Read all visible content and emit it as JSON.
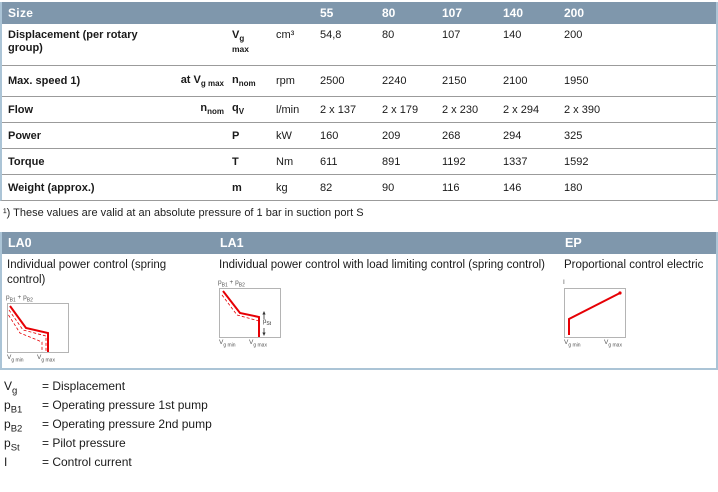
{
  "colors": {
    "header_bar": "#7f97ac",
    "section_border": "#abc4d6",
    "row_divider": "#9b9b9b",
    "curve_red": "#e60005"
  },
  "table": {
    "title": "Size",
    "sizes": [
      "55",
      "80",
      "107",
      "140",
      "200"
    ],
    "rows": [
      {
        "label": "Displacement (per rotary group)",
        "cond": [],
        "symbol": [
          {
            "t": "V"
          },
          {
            "t": "g",
            "s": true
          },
          {
            "t": "max",
            "sm": true,
            "br": true
          }
        ],
        "unit": "cm³",
        "values": [
          "54,8",
          "80",
          "107",
          "140",
          "200"
        ]
      },
      {
        "label": "Max. speed 1)",
        "cond": [
          {
            "t": "at V"
          },
          {
            "t": "g max",
            "s": true
          }
        ],
        "symbol": [
          {
            "t": "n"
          },
          {
            "t": "nom",
            "s": true
          }
        ],
        "unit": "rpm",
        "values": [
          "2500",
          "2240",
          "2150",
          "2100",
          "1950"
        ]
      },
      {
        "label": "Flow",
        "cond": [
          {
            "t": "n"
          },
          {
            "t": "nom",
            "s": true
          }
        ],
        "symbol": [
          {
            "t": "q"
          },
          {
            "t": "V",
            "s": true
          }
        ],
        "unit": "l/min",
        "values": [
          "2 x 137",
          "2 x 179",
          "2 x 230",
          "2 x 294",
          "2 x 390"
        ]
      },
      {
        "label": "Power",
        "cond": [],
        "symbol": [
          {
            "t": "P"
          }
        ],
        "unit": "kW",
        "values": [
          "160",
          "209",
          "268",
          "294",
          "325"
        ]
      },
      {
        "label": "Torque",
        "cond": [],
        "symbol": [
          {
            "t": "T"
          }
        ],
        "unit": "Nm",
        "values": [
          "611",
          "891",
          "1192",
          "1337",
          "1592"
        ]
      },
      {
        "label": "Weight (approx.)",
        "cond": [],
        "symbol": [
          {
            "t": "m"
          }
        ],
        "unit": "kg",
        "values": [
          "82",
          "90",
          "116",
          "146",
          "180"
        ]
      }
    ]
  },
  "footnote": "¹) These values are valid at an absolute pressure of 1 bar in suction port S",
  "controls": {
    "columns": [
      {
        "code": "LA0",
        "desc": "Individual power control (spring control)"
      },
      {
        "code": "LA1",
        "desc": "Individual power control with load limiting control (spring control)"
      },
      {
        "code": "EP",
        "desc": "Proportional control electric"
      }
    ],
    "chart_labels": {
      "pressure_axis": [
        {
          "t": "p"
        },
        {
          "t": "B1",
          "s": true
        },
        {
          "t": " + p"
        },
        {
          "t": "B2",
          "s": true
        }
      ],
      "current_axis": [
        {
          "t": "I"
        }
      ],
      "vg_min": [
        {
          "t": "V"
        },
        {
          "t": "g min",
          "s": true
        }
      ],
      "vg_max": [
        {
          "t": "V"
        },
        {
          "t": "g max",
          "s": true
        }
      ],
      "pilot": [
        {
          "t": "p"
        },
        {
          "t": "St",
          "s": true
        }
      ]
    }
  },
  "legend": [
    {
      "symbol": [
        {
          "t": "V"
        },
        {
          "t": "g",
          "s": true
        }
      ],
      "desc": "= Displacement"
    },
    {
      "symbol": [
        {
          "t": "p"
        },
        {
          "t": "B1",
          "s": true
        }
      ],
      "desc": "= Operating pressure 1st pump"
    },
    {
      "symbol": [
        {
          "t": "p"
        },
        {
          "t": "B2",
          "s": true
        }
      ],
      "desc": "= Operating pressure 2nd pump"
    },
    {
      "symbol": [
        {
          "t": "p"
        },
        {
          "t": "St",
          "s": true
        }
      ],
      "desc": "= Pilot pressure"
    },
    {
      "symbol": [
        {
          "t": "I"
        }
      ],
      "desc": "= Control current"
    }
  ]
}
